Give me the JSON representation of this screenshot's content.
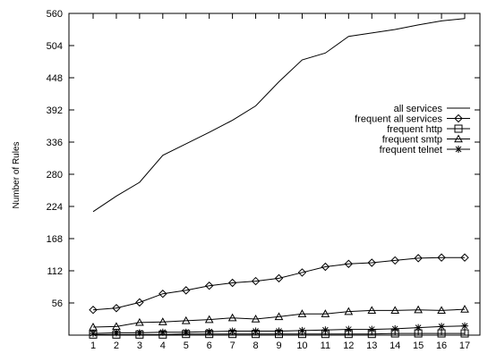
{
  "chart_data": {
    "type": "line",
    "title": "",
    "xlabel": "",
    "ylabel": "Number of Rules",
    "xlim": [
      1,
      17
    ],
    "ylim": [
      0,
      560
    ],
    "x_ticks": [
      "1",
      "2",
      "3",
      "4",
      "5",
      "6",
      "7",
      "8",
      "9",
      "10",
      "11",
      "12",
      "13",
      "14",
      "15",
      "16",
      "17"
    ],
    "y_ticks": [
      "56",
      "112",
      "168",
      "224",
      "280",
      "336",
      "392",
      "448",
      "504",
      "560"
    ],
    "grid": false,
    "legend_position": "top-right",
    "x": [
      1,
      2,
      3,
      4,
      5,
      6,
      7,
      8,
      9,
      10,
      11,
      12,
      13,
      14,
      15,
      16,
      17
    ],
    "series": [
      {
        "name": "all services",
        "marker": "none",
        "values": [
          215,
          242,
          266,
          313,
          333,
          353,
          374,
          399,
          441,
          479,
          491,
          520,
          526,
          532,
          540,
          547,
          551
        ]
      },
      {
        "name": "frequent all services",
        "marker": "diamond",
        "values": [
          44,
          47,
          57,
          72,
          78,
          86,
          91,
          94,
          99,
          109,
          119,
          124,
          126,
          130,
          134,
          135,
          135
        ]
      },
      {
        "name": "frequent http",
        "marker": "square",
        "values": [
          1,
          1,
          1,
          1,
          2,
          2,
          2,
          2,
          2,
          2,
          2,
          2,
          2,
          3,
          3,
          3,
          3
        ]
      },
      {
        "name": "frequent smtp",
        "marker": "triangle",
        "values": [
          14,
          15,
          22,
          23,
          25,
          27,
          30,
          28,
          32,
          37,
          37,
          41,
          43,
          43,
          44,
          43,
          45
        ]
      },
      {
        "name": "frequent telnet",
        "marker": "star",
        "values": [
          3,
          4,
          4,
          5,
          5,
          6,
          7,
          7,
          7,
          8,
          9,
          10,
          10,
          11,
          13,
          15,
          16
        ]
      }
    ]
  }
}
